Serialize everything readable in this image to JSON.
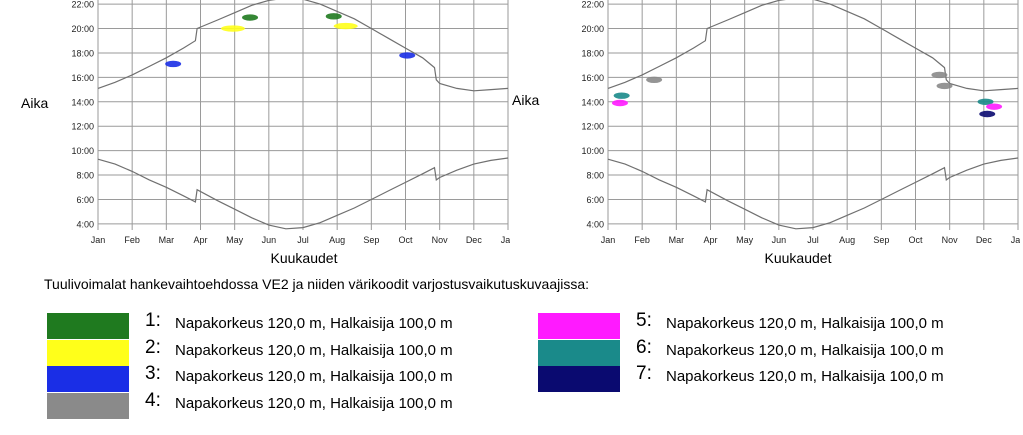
{
  "chart_data": [
    {
      "type": "scatter",
      "xlabel": "Kuukaudet",
      "ylabel": "Aika",
      "months": [
        "Jan",
        "Feb",
        "Mar",
        "Apr",
        "May",
        "Jun",
        "Jul",
        "Aug",
        "Sep",
        "Oct",
        "Nov",
        "Dec",
        "Jan"
      ],
      "yticks": [
        "4:00",
        "6:00",
        "8:00",
        "10:00",
        "12:00",
        "14:00",
        "16:00",
        "18:00",
        "20:00",
        "22:00"
      ],
      "ylim": [
        3.5,
        22.5
      ],
      "grid": true,
      "sunset_curve": [
        [
          0,
          15.1
        ],
        [
          0.5,
          15.6
        ],
        [
          1,
          16.2
        ],
        [
          1.5,
          16.9
        ],
        [
          2,
          17.6
        ],
        [
          2.5,
          18.4
        ],
        [
          2.85,
          19.0
        ],
        [
          2.9,
          20.0
        ],
        [
          3.5,
          20.7
        ],
        [
          4,
          21.3
        ],
        [
          4.5,
          21.9
        ],
        [
          5,
          22.3
        ],
        [
          5.5,
          22.5
        ],
        [
          6,
          22.4
        ],
        [
          6.5,
          22.0
        ],
        [
          7,
          21.4
        ],
        [
          7.5,
          20.8
        ],
        [
          8,
          20.0
        ],
        [
          8.5,
          19.2
        ],
        [
          9,
          18.4
        ],
        [
          9.5,
          17.6
        ],
        [
          9.85,
          16.8
        ],
        [
          9.9,
          15.8
        ],
        [
          10,
          15.5
        ],
        [
          10.5,
          15.1
        ],
        [
          11,
          14.9
        ],
        [
          11.5,
          15.0
        ],
        [
          12,
          15.1
        ]
      ],
      "sunrise_curve": [
        [
          0,
          9.3
        ],
        [
          0.5,
          8.9
        ],
        [
          1,
          8.3
        ],
        [
          1.5,
          7.6
        ],
        [
          2,
          7.0
        ],
        [
          2.5,
          6.3
        ],
        [
          2.85,
          5.8
        ],
        [
          2.9,
          6.8
        ],
        [
          3.5,
          5.9
        ],
        [
          4,
          5.2
        ],
        [
          4.5,
          4.5
        ],
        [
          5,
          3.9
        ],
        [
          5.5,
          3.6
        ],
        [
          6,
          3.7
        ],
        [
          6.5,
          4.1
        ],
        [
          7,
          4.7
        ],
        [
          7.5,
          5.3
        ],
        [
          8,
          6.0
        ],
        [
          8.5,
          6.7
        ],
        [
          9,
          7.4
        ],
        [
          9.5,
          8.1
        ],
        [
          9.85,
          8.6
        ],
        [
          9.9,
          7.6
        ],
        [
          10,
          7.8
        ],
        [
          10.5,
          8.4
        ],
        [
          11,
          8.9
        ],
        [
          11.5,
          9.2
        ],
        [
          12,
          9.4
        ]
      ],
      "shadow_points": [
        {
          "turbine": 3,
          "x": 2.2,
          "y": 17.1
        },
        {
          "turbine": 1,
          "x": 4.45,
          "y": 20.9
        },
        {
          "turbine": 2,
          "x": 3.95,
          "y": 20.0
        },
        {
          "turbine": 1,
          "x": 6.9,
          "y": 21.0
        },
        {
          "turbine": 2,
          "x": 7.25,
          "y": 20.2
        },
        {
          "turbine": 3,
          "x": 9.05,
          "y": 17.8
        }
      ]
    },
    {
      "type": "scatter",
      "xlabel": "Kuukaudet",
      "ylabel": "Aika",
      "months": [
        "Jan",
        "Feb",
        "Mar",
        "Apr",
        "May",
        "Jun",
        "Jul",
        "Aug",
        "Sep",
        "Oct",
        "Nov",
        "Dec",
        "Jan"
      ],
      "yticks": [
        "4:00",
        "6:00",
        "8:00",
        "10:00",
        "12:00",
        "14:00",
        "16:00",
        "18:00",
        "20:00",
        "22:00"
      ],
      "ylim": [
        3.5,
        22.5
      ],
      "grid": true,
      "sunset_curve": [
        [
          0,
          15.1
        ],
        [
          0.5,
          15.6
        ],
        [
          1,
          16.2
        ],
        [
          1.5,
          16.9
        ],
        [
          2,
          17.6
        ],
        [
          2.5,
          18.4
        ],
        [
          2.85,
          19.0
        ],
        [
          2.9,
          20.0
        ],
        [
          3.5,
          20.7
        ],
        [
          4,
          21.3
        ],
        [
          4.5,
          21.9
        ],
        [
          5,
          22.3
        ],
        [
          5.5,
          22.5
        ],
        [
          6,
          22.4
        ],
        [
          6.5,
          22.0
        ],
        [
          7,
          21.4
        ],
        [
          7.5,
          20.8
        ],
        [
          8,
          20.0
        ],
        [
          8.5,
          19.2
        ],
        [
          9,
          18.4
        ],
        [
          9.5,
          17.6
        ],
        [
          9.85,
          16.8
        ],
        [
          9.9,
          15.8
        ],
        [
          10,
          15.5
        ],
        [
          10.5,
          15.1
        ],
        [
          11,
          14.9
        ],
        [
          11.5,
          15.0
        ],
        [
          12,
          15.1
        ]
      ],
      "sunrise_curve": [
        [
          0,
          9.3
        ],
        [
          0.5,
          8.9
        ],
        [
          1,
          8.3
        ],
        [
          1.5,
          7.6
        ],
        [
          2,
          7.0
        ],
        [
          2.5,
          6.3
        ],
        [
          2.85,
          5.8
        ],
        [
          2.9,
          6.8
        ],
        [
          3.5,
          5.9
        ],
        [
          4,
          5.2
        ],
        [
          4.5,
          4.5
        ],
        [
          5,
          3.9
        ],
        [
          5.5,
          3.6
        ],
        [
          6,
          3.7
        ],
        [
          6.5,
          4.1
        ],
        [
          7,
          4.7
        ],
        [
          7.5,
          5.3
        ],
        [
          8,
          6.0
        ],
        [
          8.5,
          6.7
        ],
        [
          9,
          7.4
        ],
        [
          9.5,
          8.1
        ],
        [
          9.85,
          8.6
        ],
        [
          9.9,
          7.6
        ],
        [
          10,
          7.8
        ],
        [
          10.5,
          8.4
        ],
        [
          11,
          8.9
        ],
        [
          11.5,
          9.2
        ],
        [
          12,
          9.4
        ]
      ],
      "shadow_points": [
        {
          "turbine": 6,
          "x": 0.4,
          "y": 14.5
        },
        {
          "turbine": 5,
          "x": 0.35,
          "y": 13.9
        },
        {
          "turbine": 4,
          "x": 1.35,
          "y": 15.8
        },
        {
          "turbine": 4,
          "x": 9.7,
          "y": 16.2
        },
        {
          "turbine": 4,
          "x": 9.85,
          "y": 15.3
        },
        {
          "turbine": 6,
          "x": 11.05,
          "y": 14.0
        },
        {
          "turbine": 5,
          "x": 11.3,
          "y": 13.6
        },
        {
          "turbine": 7,
          "x": 11.1,
          "y": 13.0
        }
      ]
    }
  ],
  "legend": {
    "caption": "Tuulivoimalat hankevaihtoehdossa VE2 ja niiden värikoodit varjostusvaikutuskuvaajissa:",
    "items": [
      {
        "num": "1:",
        "text": "Napakorkeus 120,0 m, Halkaisija 100,0 m",
        "color": "#1f7a1f"
      },
      {
        "num": "2:",
        "text": "Napakorkeus 120,0 m, Halkaisija 100,0 m",
        "color": "#ffff1a"
      },
      {
        "num": "3:",
        "text": "Napakorkeus 120,0 m, Halkaisija 100,0 m",
        "color": "#1a2ee6"
      },
      {
        "num": "4:",
        "text": "Napakorkeus 120,0 m, Halkaisija 100,0 m",
        "color": "#8a8a8a"
      },
      {
        "num": "5:",
        "text": "Napakorkeus 120,0 m, Halkaisija 100,0 m",
        "color": "#ff1aff"
      },
      {
        "num": "6:",
        "text": "Napakorkeus 120,0 m, Halkaisija 100,0 m",
        "color": "#1a8a8a"
      },
      {
        "num": "7:",
        "text": "Napakorkeus 120,0 m, Halkaisija 100,0 m",
        "color": "#0a0a70"
      }
    ]
  }
}
